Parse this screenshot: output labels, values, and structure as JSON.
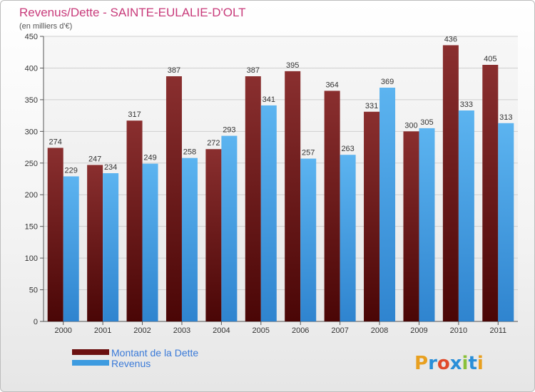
{
  "chart_data": {
    "type": "bar",
    "title": "Revenus/Dette - SAINTE-EULALIE-D'OLT",
    "subtitle": "(en milliers d'€)",
    "categories": [
      "2000",
      "2001",
      "2002",
      "2003",
      "2004",
      "2005",
      "2006",
      "2007",
      "2008",
      "2009",
      "2010",
      "2011"
    ],
    "series": [
      {
        "name": "Montant de la Dette",
        "color": "#7a1515",
        "values": [
          274,
          247,
          317,
          387,
          272,
          387,
          395,
          364,
          331,
          300,
          436,
          405
        ]
      },
      {
        "name": "Revenus",
        "color": "#3d9be0",
        "values": [
          229,
          234,
          249,
          258,
          293,
          341,
          257,
          263,
          369,
          305,
          333,
          313
        ]
      }
    ],
    "ylim": [
      0,
      450
    ],
    "yticks": [
      0,
      50,
      100,
      150,
      200,
      250,
      300,
      350,
      400,
      450
    ],
    "grid": true,
    "legend_placement": "bottom-left"
  },
  "logo": {
    "text": "Proxiti"
  }
}
